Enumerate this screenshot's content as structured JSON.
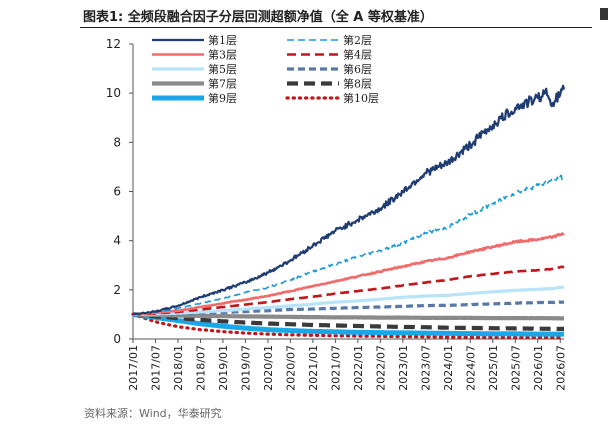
{
  "header": {
    "title": "图表1:  全频段融合因子分层回测超额净值（全 A 等权基准）"
  },
  "footer": {
    "source": "资料来源：Wind，华泰研究"
  },
  "chart_data": {
    "type": "line",
    "ylim": [
      0,
      12
    ],
    "yticks": [
      0,
      2,
      4,
      6,
      8,
      10,
      12
    ],
    "x_start": "2017-01",
    "x_end": "2026-08",
    "x_ticks": [
      "2017/01",
      "2017/07",
      "2018/01",
      "2018/07",
      "2019/01",
      "2019/07",
      "2020/01",
      "2020/07",
      "2021/01",
      "2021/07",
      "2022/01",
      "2022/07",
      "2023/01",
      "2023/07",
      "2024/01",
      "2024/07",
      "2025/01",
      "2025/07",
      "2026/01",
      "2026/07"
    ],
    "legend_placement": "top-left",
    "grid": false,
    "series": [
      {
        "name": "第1层",
        "color": "#1f3c73",
        "dash": "solid",
        "width": 2.2,
        "points": [
          [
            "2017-01",
            1.0
          ],
          [
            "2017-07",
            1.12
          ],
          [
            "2018-01",
            1.35
          ],
          [
            "2018-07",
            1.7
          ],
          [
            "2019-01",
            2.0
          ],
          [
            "2019-07",
            2.3
          ],
          [
            "2020-01",
            2.7
          ],
          [
            "2020-07",
            3.2
          ],
          [
            "2021-01",
            3.8
          ],
          [
            "2021-07",
            4.4
          ],
          [
            "2022-01",
            4.85
          ],
          [
            "2022-07",
            5.3
          ],
          [
            "2023-01",
            6.0
          ],
          [
            "2023-07",
            6.75
          ],
          [
            "2024-01",
            7.15
          ],
          [
            "2024-07",
            7.9
          ],
          [
            "2025-01",
            8.7
          ],
          [
            "2025-07",
            9.4
          ],
          [
            "2026-01",
            9.8
          ],
          [
            "2026-03",
            10.05
          ],
          [
            "2026-05",
            9.6
          ],
          [
            "2026-08",
            10.15
          ]
        ]
      },
      {
        "name": "第2层",
        "color": "#1b9ad6",
        "dash": "7,4",
        "width": 1.6,
        "points": [
          [
            "2017-01",
            1.0
          ],
          [
            "2017-07",
            1.1
          ],
          [
            "2018-01",
            1.25
          ],
          [
            "2018-07",
            1.45
          ],
          [
            "2019-01",
            1.65
          ],
          [
            "2019-07",
            1.9
          ],
          [
            "2020-01",
            2.1
          ],
          [
            "2020-07",
            2.4
          ],
          [
            "2021-01",
            2.75
          ],
          [
            "2021-07",
            3.05
          ],
          [
            "2022-01",
            3.35
          ],
          [
            "2022-07",
            3.6
          ],
          [
            "2023-01",
            3.9
          ],
          [
            "2023-07",
            4.3
          ],
          [
            "2024-01",
            4.55
          ],
          [
            "2024-07",
            5.05
          ],
          [
            "2025-01",
            5.5
          ],
          [
            "2025-07",
            5.95
          ],
          [
            "2026-01",
            6.25
          ],
          [
            "2026-05",
            6.45
          ],
          [
            "2026-08",
            6.6
          ]
        ]
      },
      {
        "name": "第3层",
        "color": "#f26b6b",
        "dash": "solid",
        "width": 2.6,
        "points": [
          [
            "2017-01",
            1.0
          ],
          [
            "2017-07",
            1.07
          ],
          [
            "2018-01",
            1.15
          ],
          [
            "2018-07",
            1.3
          ],
          [
            "2019-01",
            1.45
          ],
          [
            "2019-07",
            1.6
          ],
          [
            "2020-01",
            1.75
          ],
          [
            "2020-07",
            1.95
          ],
          [
            "2021-01",
            2.15
          ],
          [
            "2021-07",
            2.35
          ],
          [
            "2022-01",
            2.55
          ],
          [
            "2022-07",
            2.75
          ],
          [
            "2023-01",
            2.95
          ],
          [
            "2023-07",
            3.15
          ],
          [
            "2024-01",
            3.3
          ],
          [
            "2024-07",
            3.55
          ],
          [
            "2025-01",
            3.75
          ],
          [
            "2025-07",
            3.95
          ],
          [
            "2026-01",
            4.05
          ],
          [
            "2026-05",
            4.15
          ],
          [
            "2026-08",
            4.3
          ]
        ]
      },
      {
        "name": "第4层",
        "color": "#c0171d",
        "dash": "9,5",
        "width": 2.6,
        "points": [
          [
            "2017-01",
            1.0
          ],
          [
            "2017-07",
            1.04
          ],
          [
            "2018-01",
            1.1
          ],
          [
            "2018-07",
            1.2
          ],
          [
            "2019-01",
            1.3
          ],
          [
            "2019-07",
            1.4
          ],
          [
            "2020-01",
            1.5
          ],
          [
            "2020-07",
            1.62
          ],
          [
            "2021-01",
            1.72
          ],
          [
            "2021-07",
            1.85
          ],
          [
            "2022-01",
            1.95
          ],
          [
            "2022-07",
            2.05
          ],
          [
            "2023-01",
            2.18
          ],
          [
            "2023-07",
            2.3
          ],
          [
            "2024-01",
            2.4
          ],
          [
            "2024-07",
            2.55
          ],
          [
            "2025-01",
            2.65
          ],
          [
            "2025-07",
            2.75
          ],
          [
            "2026-01",
            2.8
          ],
          [
            "2026-05",
            2.85
          ],
          [
            "2026-08",
            2.95
          ]
        ]
      },
      {
        "name": "第5层",
        "color": "#b9e3f7",
        "dash": "solid",
        "width": 3.2,
        "points": [
          [
            "2017-01",
            1.0
          ],
          [
            "2017-07",
            1.02
          ],
          [
            "2018-01",
            1.05
          ],
          [
            "2018-07",
            1.1
          ],
          [
            "2019-01",
            1.15
          ],
          [
            "2019-07",
            1.22
          ],
          [
            "2020-01",
            1.28
          ],
          [
            "2020-07",
            1.35
          ],
          [
            "2021-01",
            1.42
          ],
          [
            "2021-07",
            1.5
          ],
          [
            "2022-01",
            1.55
          ],
          [
            "2022-07",
            1.62
          ],
          [
            "2023-01",
            1.7
          ],
          [
            "2023-07",
            1.75
          ],
          [
            "2024-01",
            1.78
          ],
          [
            "2024-07",
            1.85
          ],
          [
            "2025-01",
            1.92
          ],
          [
            "2025-07",
            1.98
          ],
          [
            "2026-01",
            2.02
          ],
          [
            "2026-05",
            2.05
          ],
          [
            "2026-08",
            2.12
          ]
        ]
      },
      {
        "name": "第6层",
        "color": "#5879a8",
        "dash": "7,4",
        "width": 3.2,
        "points": [
          [
            "2017-01",
            1.0
          ],
          [
            "2017-07",
            1.0
          ],
          [
            "2018-01",
            1.02
          ],
          [
            "2018-07",
            1.05
          ],
          [
            "2019-01",
            1.08
          ],
          [
            "2019-07",
            1.12
          ],
          [
            "2020-01",
            1.15
          ],
          [
            "2020-07",
            1.2
          ],
          [
            "2021-01",
            1.22
          ],
          [
            "2021-07",
            1.25
          ],
          [
            "2022-01",
            1.28
          ],
          [
            "2022-07",
            1.3
          ],
          [
            "2023-01",
            1.33
          ],
          [
            "2023-07",
            1.36
          ],
          [
            "2024-01",
            1.37
          ],
          [
            "2024-07",
            1.4
          ],
          [
            "2025-01",
            1.43
          ],
          [
            "2025-07",
            1.46
          ],
          [
            "2026-01",
            1.48
          ],
          [
            "2026-08",
            1.5
          ]
        ]
      },
      {
        "name": "第7层",
        "color": "#8a8a8a",
        "dash": "solid",
        "width": 4.2,
        "points": [
          [
            "2017-01",
            1.0
          ],
          [
            "2017-07",
            0.98
          ],
          [
            "2018-01",
            0.96
          ],
          [
            "2018-07",
            0.94
          ],
          [
            "2019-01",
            0.93
          ],
          [
            "2019-07",
            0.92
          ],
          [
            "2020-01",
            0.91
          ],
          [
            "2020-07",
            0.9
          ],
          [
            "2021-01",
            0.89
          ],
          [
            "2021-07",
            0.88
          ],
          [
            "2022-01",
            0.88
          ],
          [
            "2022-07",
            0.87
          ],
          [
            "2023-01",
            0.87
          ],
          [
            "2023-07",
            0.86
          ],
          [
            "2024-01",
            0.86
          ],
          [
            "2024-07",
            0.86
          ],
          [
            "2025-01",
            0.85
          ],
          [
            "2025-07",
            0.85
          ],
          [
            "2026-01",
            0.85
          ],
          [
            "2026-08",
            0.84
          ]
        ]
      },
      {
        "name": "第8层",
        "color": "#3a3a3a",
        "dash": "11,6",
        "width": 4.2,
        "points": [
          [
            "2017-01",
            1.0
          ],
          [
            "2017-07",
            0.92
          ],
          [
            "2018-01",
            0.85
          ],
          [
            "2018-07",
            0.78
          ],
          [
            "2019-01",
            0.72
          ],
          [
            "2019-07",
            0.67
          ],
          [
            "2020-01",
            0.63
          ],
          [
            "2020-07",
            0.6
          ],
          [
            "2021-01",
            0.57
          ],
          [
            "2021-07",
            0.55
          ],
          [
            "2022-01",
            0.53
          ],
          [
            "2022-07",
            0.51
          ],
          [
            "2023-01",
            0.49
          ],
          [
            "2023-07",
            0.48
          ],
          [
            "2024-01",
            0.46
          ],
          [
            "2024-07",
            0.45
          ],
          [
            "2025-01",
            0.44
          ],
          [
            "2025-07",
            0.43
          ],
          [
            "2026-01",
            0.42
          ],
          [
            "2026-08",
            0.41
          ]
        ]
      },
      {
        "name": "第9层",
        "color": "#1aa7e8",
        "dash": "solid",
        "width": 5.0,
        "points": [
          [
            "2017-01",
            1.0
          ],
          [
            "2017-07",
            0.88
          ],
          [
            "2018-01",
            0.75
          ],
          [
            "2018-07",
            0.62
          ],
          [
            "2019-01",
            0.52
          ],
          [
            "2019-07",
            0.44
          ],
          [
            "2020-01",
            0.38
          ],
          [
            "2020-07",
            0.34
          ],
          [
            "2021-01",
            0.31
          ],
          [
            "2021-07",
            0.29
          ],
          [
            "2022-01",
            0.27
          ],
          [
            "2022-07",
            0.26
          ],
          [
            "2023-01",
            0.25
          ],
          [
            "2023-07",
            0.24
          ],
          [
            "2024-01",
            0.23
          ],
          [
            "2024-07",
            0.22
          ],
          [
            "2025-01",
            0.21
          ],
          [
            "2025-07",
            0.21
          ],
          [
            "2026-01",
            0.2
          ],
          [
            "2026-08",
            0.2
          ]
        ]
      },
      {
        "name": "第10层",
        "color": "#c0171d",
        "dash": "1.2,5",
        "width": 3.2,
        "points": [
          [
            "2017-01",
            1.0
          ],
          [
            "2017-07",
            0.7
          ],
          [
            "2018-01",
            0.5
          ],
          [
            "2018-07",
            0.38
          ],
          [
            "2019-01",
            0.3
          ],
          [
            "2019-07",
            0.24
          ],
          [
            "2020-01",
            0.2
          ],
          [
            "2020-07",
            0.17
          ],
          [
            "2021-01",
            0.15
          ],
          [
            "2021-07",
            0.13
          ],
          [
            "2022-01",
            0.12
          ],
          [
            "2022-07",
            0.11
          ],
          [
            "2023-01",
            0.1
          ],
          [
            "2023-07",
            0.09
          ],
          [
            "2024-01",
            0.08
          ],
          [
            "2024-07",
            0.07
          ],
          [
            "2025-01",
            0.07
          ],
          [
            "2025-07",
            0.06
          ],
          [
            "2026-01",
            0.06
          ],
          [
            "2026-08",
            0.05
          ]
        ]
      }
    ]
  }
}
